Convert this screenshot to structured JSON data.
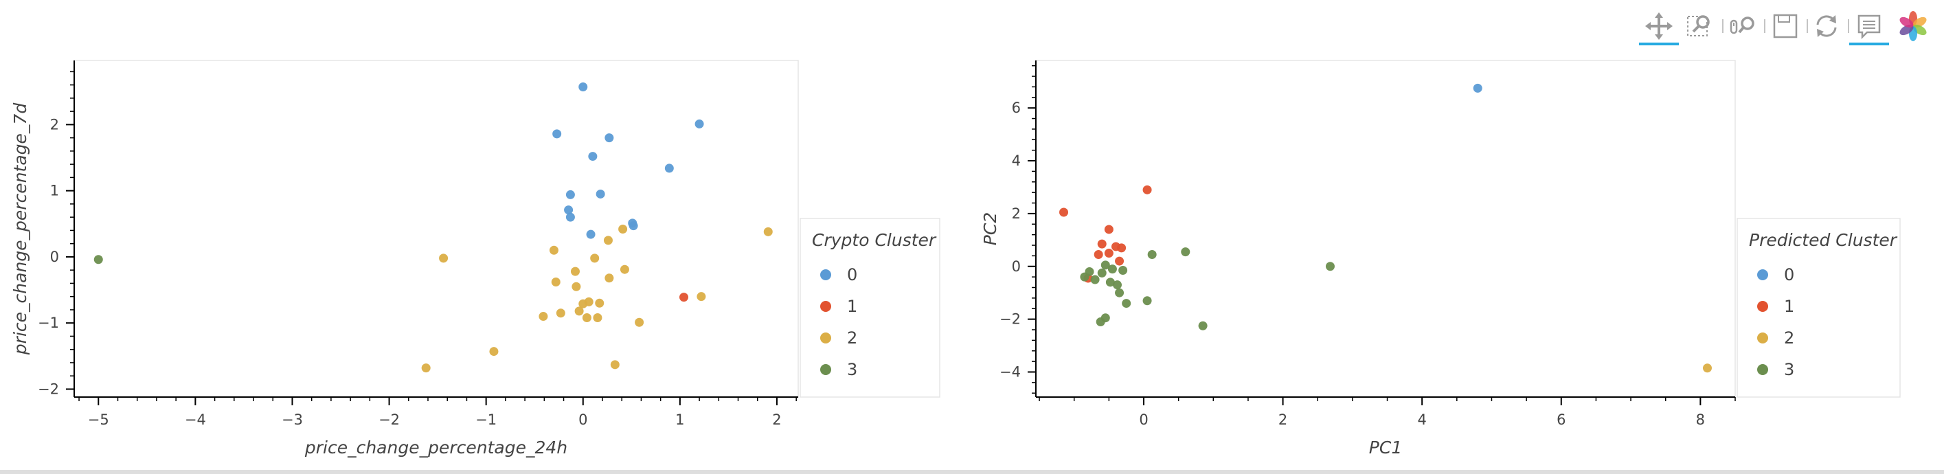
{
  "toolbar": {
    "tools": [
      {
        "name": "pan-tool",
        "icon": "pan-icon",
        "active": true
      },
      {
        "name": "box-zoom-tool",
        "icon": "box-zoom-icon",
        "active": false
      },
      {
        "name": "wheel-zoom-tool",
        "icon": "wheel-zoom-icon",
        "active": false
      },
      {
        "name": "save-tool",
        "icon": "save-icon",
        "active": false
      },
      {
        "name": "reset-tool",
        "icon": "reset-icon",
        "active": false
      },
      {
        "name": "hover-tool",
        "icon": "hover-icon",
        "active": true
      },
      {
        "name": "bokeh-logo",
        "icon": "bokeh-logo-icon",
        "active": false
      }
    ]
  },
  "colors": {
    "0": "#5b9bd5",
    "1": "#e2522f",
    "2": "#dbae46",
    "3": "#6b8e4e"
  },
  "chart_data": [
    {
      "type": "scatter",
      "xlabel": "price_change_percentage_24h",
      "ylabel": "price_change_percentage_7d",
      "xlim": [
        -5.25,
        2.22
      ],
      "ylim": [
        -2.12,
        2.97
      ],
      "xticks": [
        -5,
        -4,
        -3,
        -2,
        -1,
        0,
        1,
        2
      ],
      "yticks": [
        -2,
        -1,
        0,
        1,
        2
      ],
      "grid": false,
      "legend_title": "Crypto Cluster",
      "legend_position": "right",
      "series": [
        {
          "name": "0",
          "points": [
            [
              0.0,
              2.57
            ],
            [
              -0.27,
              1.86
            ],
            [
              0.27,
              1.8
            ],
            [
              1.2,
              2.01
            ],
            [
              0.1,
              1.52
            ],
            [
              0.89,
              1.34
            ],
            [
              -0.13,
              0.94
            ],
            [
              0.18,
              0.95
            ],
            [
              -0.15,
              0.71
            ],
            [
              -0.13,
              0.6
            ],
            [
              0.08,
              0.34
            ],
            [
              0.51,
              0.51
            ],
            [
              0.52,
              0.47
            ]
          ]
        },
        {
          "name": "1",
          "points": [
            [
              1.04,
              -0.61
            ]
          ]
        },
        {
          "name": "2",
          "points": [
            [
              -1.44,
              -0.02
            ],
            [
              -1.62,
              -1.68
            ],
            [
              -0.92,
              -1.43
            ],
            [
              1.91,
              0.38
            ],
            [
              -0.3,
              0.1
            ],
            [
              0.26,
              0.25
            ],
            [
              0.41,
              0.42
            ],
            [
              0.12,
              -0.02
            ],
            [
              -0.08,
              -0.22
            ],
            [
              0.43,
              -0.19
            ],
            [
              0.27,
              -0.32
            ],
            [
              -0.28,
              -0.38
            ],
            [
              -0.07,
              -0.45
            ],
            [
              0.0,
              -0.71
            ],
            [
              0.06,
              -0.68
            ],
            [
              0.17,
              -0.7
            ],
            [
              -0.23,
              -0.85
            ],
            [
              -0.41,
              -0.9
            ],
            [
              -0.04,
              -0.82
            ],
            [
              0.04,
              -0.92
            ],
            [
              0.15,
              -0.92
            ],
            [
              0.58,
              -0.99
            ],
            [
              1.22,
              -0.6
            ],
            [
              0.33,
              -1.63
            ]
          ]
        },
        {
          "name": "3",
          "points": [
            [
              -5.0,
              -0.04
            ]
          ]
        }
      ]
    },
    {
      "type": "scatter",
      "xlabel": "PC1",
      "ylabel": "PC2",
      "xlim": [
        -1.55,
        8.5
      ],
      "ylim": [
        -4.95,
        7.8
      ],
      "xticks": [
        0,
        2,
        4,
        6,
        8
      ],
      "yticks": [
        -4,
        -2,
        0,
        2,
        4,
        6
      ],
      "grid": false,
      "legend_title": "Predicted Cluster",
      "legend_position": "right",
      "series": [
        {
          "name": "0",
          "points": [
            [
              4.8,
              6.75
            ]
          ]
        },
        {
          "name": "1",
          "points": [
            [
              -1.15,
              2.05
            ],
            [
              0.05,
              2.9
            ],
            [
              -0.5,
              1.4
            ],
            [
              -0.6,
              0.85
            ],
            [
              -0.4,
              0.75
            ],
            [
              -0.32,
              0.7
            ],
            [
              -0.5,
              0.5
            ],
            [
              -0.65,
              0.45
            ],
            [
              -0.35,
              0.2
            ],
            [
              -0.8,
              -0.45
            ]
          ]
        },
        {
          "name": "2",
          "points": [
            [
              8.1,
              -3.85
            ]
          ]
        },
        {
          "name": "3",
          "points": [
            [
              2.68,
              0.0
            ],
            [
              0.6,
              0.55
            ],
            [
              0.12,
              0.45
            ],
            [
              0.05,
              -1.3
            ],
            [
              0.85,
              -2.25
            ],
            [
              -0.55,
              0.05
            ],
            [
              -0.45,
              -0.1
            ],
            [
              -0.3,
              -0.15
            ],
            [
              -0.6,
              -0.25
            ],
            [
              -0.78,
              -0.2
            ],
            [
              -0.7,
              -0.5
            ],
            [
              -0.85,
              -0.4
            ],
            [
              -0.48,
              -0.6
            ],
            [
              -0.38,
              -0.7
            ],
            [
              -0.25,
              -1.4
            ],
            [
              -0.35,
              -1.0
            ],
            [
              -0.55,
              -1.95
            ],
            [
              -0.62,
              -2.1
            ]
          ]
        }
      ]
    }
  ]
}
